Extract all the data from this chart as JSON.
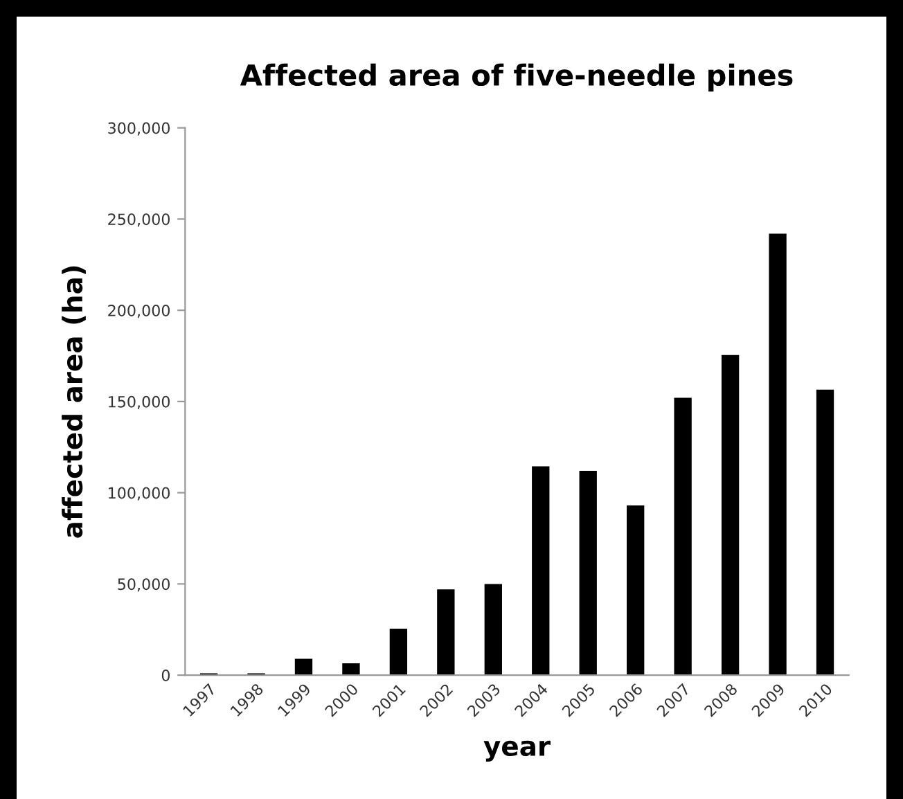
{
  "chart_data": {
    "type": "bar",
    "title": "Affected area of five-needle pines",
    "xlabel": "year",
    "ylabel": "affected area (ha)",
    "categories": [
      "1997",
      "1998",
      "1999",
      "2000",
      "2001",
      "2002",
      "2003",
      "2004",
      "2005",
      "2006",
      "2007",
      "2008",
      "2009",
      "2010"
    ],
    "values": [
      1000,
      1000,
      9000,
      6500,
      25500,
      47000,
      50000,
      114500,
      112000,
      93000,
      152000,
      175500,
      242000,
      156500
    ],
    "color": "#000000",
    "ylim": [
      0,
      300000
    ],
    "yticks": [
      {
        "value": 0,
        "label": "0"
      },
      {
        "value": 50000,
        "label": "50,000"
      },
      {
        "value": 100000,
        "label": "100,000"
      },
      {
        "value": 150000,
        "label": "150,000"
      },
      {
        "value": 200000,
        "label": "200,000"
      },
      {
        "value": 250000,
        "label": "250,000"
      },
      {
        "value": 300000,
        "label": "300,000"
      }
    ],
    "grid": false,
    "legend": false
  }
}
